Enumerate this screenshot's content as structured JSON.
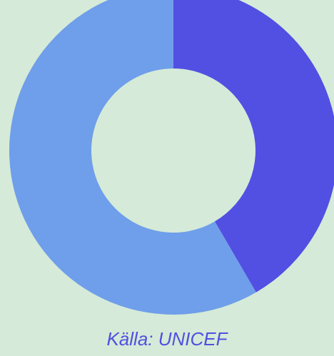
{
  "chart_data": {
    "type": "pie",
    "variant": "donut",
    "slices": [
      {
        "value": 41.6,
        "color": "#5150e2"
      },
      {
        "value": 58.4,
        "color": "#6f9eea"
      }
    ],
    "start": "top",
    "direction": "clockwise",
    "source_note": "Källa: UNICEF"
  },
  "background_color": "#d5ead8"
}
